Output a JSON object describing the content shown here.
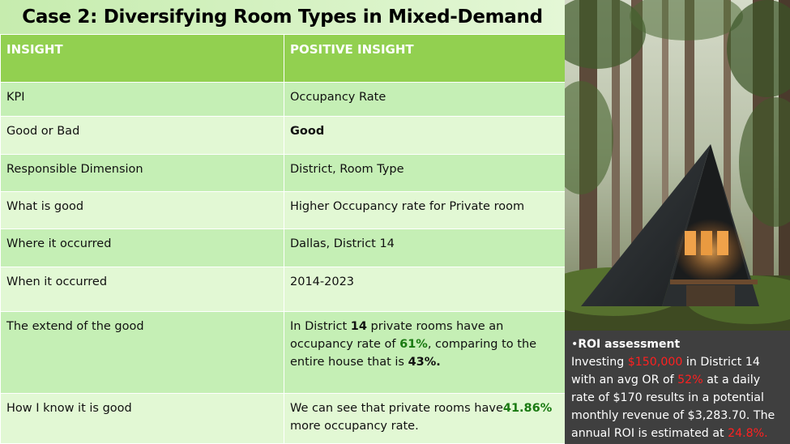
{
  "title": "Case 2: Diversifying Room Types in Mixed-Demand",
  "table": {
    "headers": [
      "INSIGHT",
      "POSITIVE INSIGHT"
    ],
    "rows": [
      {
        "label": "KPI",
        "value": "Occupancy Rate"
      },
      {
        "label": "Good or Bad",
        "value": "Good"
      },
      {
        "label": "Responsible Dimension",
        "value": "District, Room Type"
      },
      {
        "label": "What is good",
        "value": "Higher Occupancy rate for Private room"
      },
      {
        "label": "Where it occurred",
        "value": "Dallas, District 14"
      },
      {
        "label": "When it occurred",
        "value": "2014-2023"
      },
      {
        "label": "The extend of the good",
        "value_parts": [
          "In District ",
          "14",
          " private rooms have an occupancy rate of ",
          "61%",
          ", comparing to the entire house that is ",
          "43%."
        ]
      },
      {
        "label": "How I know it is good",
        "value_parts": [
          "We can see that private rooms have",
          "41.86%",
          " more occupancy rate."
        ]
      }
    ]
  },
  "roi": {
    "heading": "ROI assessment",
    "parts": [
      "Investing ",
      "$150,000",
      " in District 14 with an avg OR of ",
      "52%",
      " at a daily rate of $170 results in a potential monthly revenue of $3,283.70. The annual ROI is estimated at ",
      "24.8%."
    ]
  },
  "colors": {
    "header_green": "#92d050",
    "row_dark": "#c5efb5",
    "row_light": "#e2f8d4",
    "positive_green": "#1a7a12",
    "highlight_red": "#ff2020",
    "roi_bg": "#3f3f3f"
  },
  "image": {
    "subject": "a-frame cabin in forest photo"
  }
}
